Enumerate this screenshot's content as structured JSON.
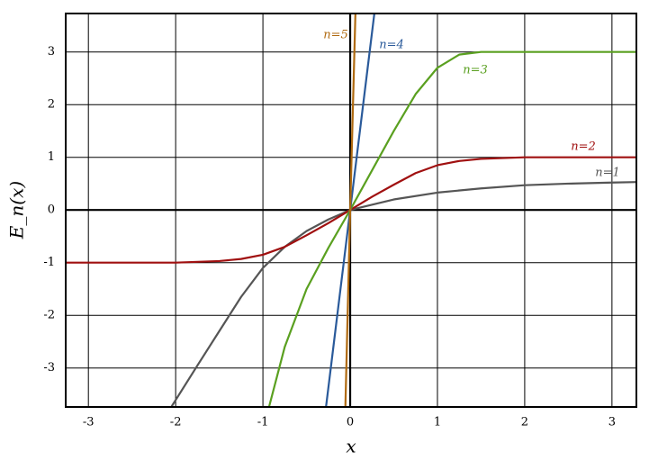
{
  "chart_data": {
    "type": "line",
    "x_label": "x",
    "y_label": "E_n(x)",
    "xlim": [
      -3.26,
      3.28
    ],
    "ylim": [
      -3.74,
      3.73
    ],
    "xticks": [
      -3,
      -2,
      -1,
      0,
      1,
      2,
      3
    ],
    "yticks": [
      -3,
      -2,
      -1,
      0,
      1,
      2,
      3
    ],
    "grid": true,
    "series": [
      {
        "name": "n=1",
        "color": "#555555",
        "x": [
          -2.05,
          -1.75,
          -1.5,
          -1.25,
          -1,
          -0.75,
          -0.5,
          -0.25,
          0,
          0.5,
          1,
          1.5,
          2,
          2.5,
          3,
          3.28
        ],
        "values": [
          -3.74,
          -2.95,
          -2.3,
          -1.65,
          -1.1,
          -0.7,
          -0.4,
          -0.18,
          0,
          0.2,
          0.33,
          0.41,
          0.47,
          0.5,
          0.52,
          0.53
        ]
      },
      {
        "name": "n=2",
        "color": "#a01010",
        "x": [
          -3.26,
          -2.5,
          -2,
          -1.5,
          -1.25,
          -1,
          -0.75,
          -0.5,
          -0.25,
          0,
          0.25,
          0.5,
          0.75,
          1,
          1.25,
          1.5,
          2,
          2.5,
          3.28
        ],
        "values": [
          -1,
          -1,
          -1,
          -0.97,
          -0.93,
          -0.85,
          -0.7,
          -0.48,
          -0.25,
          0,
          0.25,
          0.48,
          0.7,
          0.85,
          0.93,
          0.97,
          1,
          1,
          1
        ]
      },
      {
        "name": "n=3",
        "color": "#5aa020",
        "x": [
          -0.93,
          -0.75,
          -0.5,
          -0.25,
          0,
          0.25,
          0.5,
          0.75,
          1,
          1.25,
          1.5,
          2,
          2.5,
          3,
          3.28
        ],
        "values": [
          -3.74,
          -2.6,
          -1.5,
          -0.72,
          0,
          0.75,
          1.5,
          2.2,
          2.7,
          2.95,
          3,
          3,
          3,
          3,
          3
        ]
      },
      {
        "name": "n=4",
        "color": "#2a5a9a",
        "x": [
          -0.277,
          0,
          0.277
        ],
        "values": [
          -3.74,
          0,
          3.73
        ]
      },
      {
        "name": "n=5",
        "color": "#b06a10",
        "x": [
          -0.055,
          0,
          0.06
        ],
        "values": [
          -3.74,
          0,
          3.73
        ]
      }
    ]
  }
}
